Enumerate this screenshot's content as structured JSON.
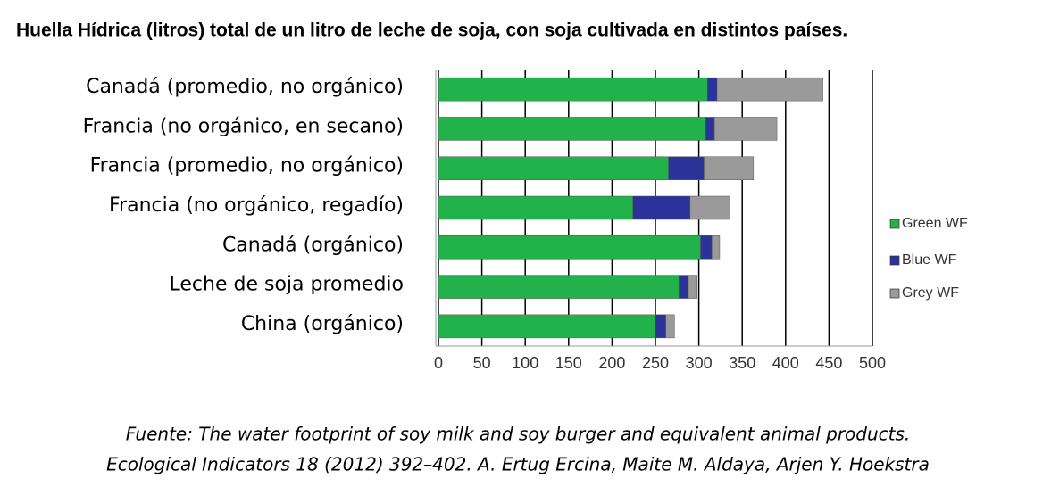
{
  "chart_data": {
    "type": "stacked-bar-horizontal",
    "title": "Huella Hídrica (litros) total de un litro de leche de soja, con soja cultivada en distintos países.",
    "categories": [
      "Canadá (promedio, no orgánico)",
      "Francia (no orgánico, en secano)",
      "Francia (promedio, no orgánico)",
      "Francia (no orgánico, regadío)",
      "Canadá (orgánico)",
      "Leche de soja promedio",
      "China (orgánico)"
    ],
    "series": [
      {
        "name": "Green WF",
        "color": "#22b24c",
        "values": [
          310,
          308,
          265,
          224,
          302,
          277,
          250
        ]
      },
      {
        "name": "Blue WF",
        "color": "#2b3399",
        "values": [
          11,
          10,
          41,
          66,
          13,
          11,
          12
        ]
      },
      {
        "name": "Grey WF",
        "color": "#9a9a9a",
        "values": [
          122,
          72,
          57,
          46,
          9,
          10,
          10
        ]
      }
    ],
    "xlim": [
      0,
      500
    ],
    "xticks": [
      0,
      50,
      100,
      150,
      200,
      250,
      300,
      350,
      400,
      450,
      500
    ],
    "grid": true,
    "source": [
      "Fuente: The water footprint of soy milk and soy burger and equivalent animal products.",
      "Ecological Indicators 18 (2012) 392–402. A. Ertug Ercina, Maite M. Aldaya, Arjen Y. Hoekstra"
    ]
  }
}
